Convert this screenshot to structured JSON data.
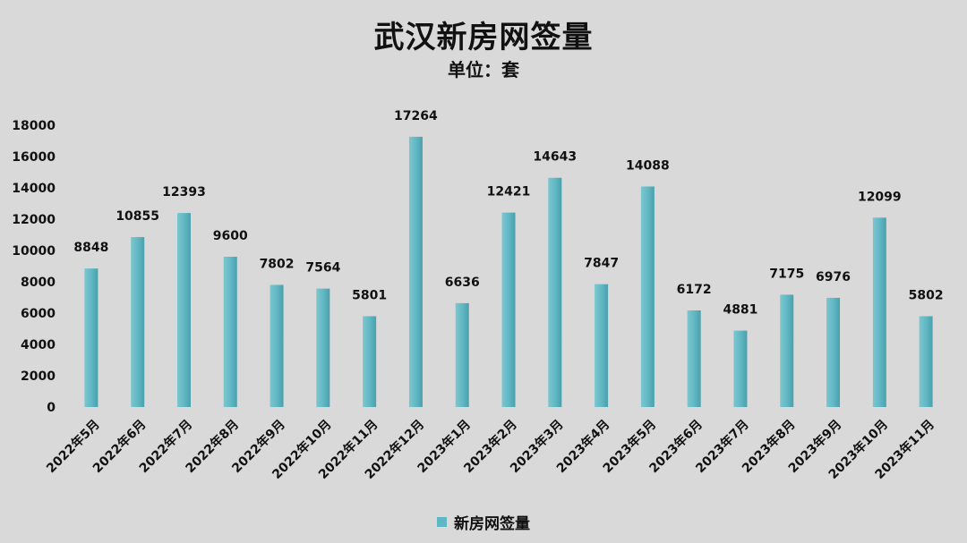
{
  "chart_data": {
    "type": "bar",
    "title": "武汉新房网签量",
    "subtitle": "单位：套",
    "categories": [
      "2022年5月",
      "2022年6月",
      "2022年7月",
      "2022年8月",
      "2022年9月",
      "2022年10月",
      "2022年11月",
      "2022年12月",
      "2023年1月",
      "2023年2月",
      "2023年3月",
      "2023年4月",
      "2023年5月",
      "2023年6月",
      "2023年7月",
      "2023年8月",
      "2023年9月",
      "2023年10月",
      "2023年11月"
    ],
    "series": [
      {
        "name": "新房网签量",
        "values": [
          8848,
          10855,
          12393,
          9600,
          7802,
          7564,
          5801,
          17264,
          6636,
          12421,
          14643,
          7847,
          14088,
          6172,
          4881,
          7175,
          6976,
          12099,
          5802
        ]
      }
    ],
    "ylim": [
      0,
      18000
    ],
    "yticks": [
      0,
      2000,
      4000,
      6000,
      8000,
      10000,
      12000,
      14000,
      16000,
      18000
    ],
    "grid": false,
    "legend_position": "bottom",
    "bar_color": "#5fb7c3"
  }
}
